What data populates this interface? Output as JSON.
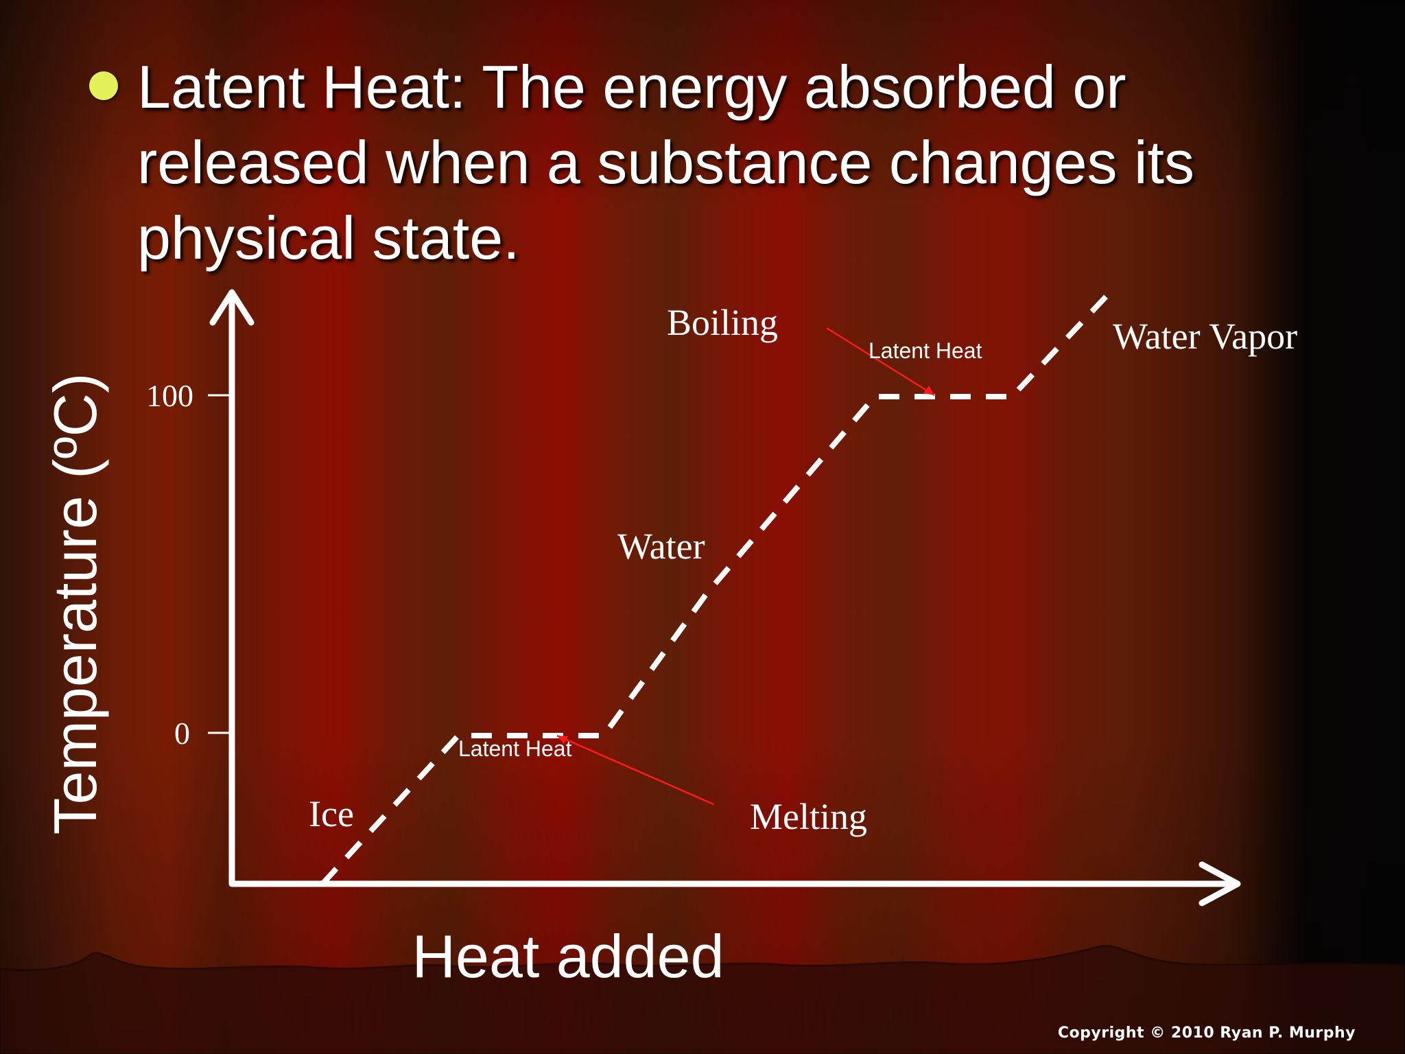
{
  "slide": {
    "title": "Latent Heat: The energy absorbed or released when a substance changes its physical state.",
    "copyright": "Copyright © 2010 Ryan P. Murphy"
  },
  "diagram": {
    "y_axis_label": "Temperature (ºC)",
    "x_axis_label": "Heat added",
    "y_ticks": [
      "100",
      "0"
    ],
    "labels": {
      "ice": "Ice",
      "water": "Water",
      "water_vapor": "Water Vapor",
      "boiling": "Boiling",
      "melting": "Melting",
      "latent_heat_top": "Latent Heat",
      "latent_heat_bottom": "Latent Heat"
    },
    "colors": {
      "line": "#ffffff",
      "pointer": "#ff1a1a",
      "bullet": "#e2f05a"
    }
  }
}
